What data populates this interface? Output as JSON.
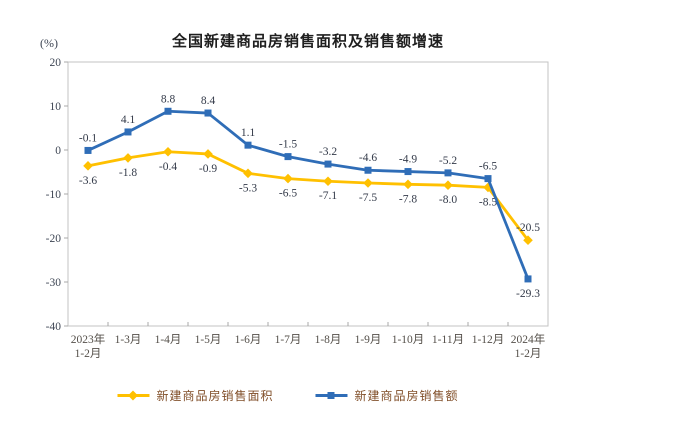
{
  "chart_data": {
    "type": "line",
    "title": "全国新建商品房销售面积及销售额增速",
    "unit_label": "(%)",
    "categories": [
      [
        "2023年",
        "1-2月"
      ],
      [
        "1-3月"
      ],
      [
        "1-4月"
      ],
      [
        "1-5月"
      ],
      [
        "1-6月"
      ],
      [
        "1-7月"
      ],
      [
        "1-8月"
      ],
      [
        "1-9月"
      ],
      [
        "1-10月"
      ],
      [
        "1-11月"
      ],
      [
        "1-12月"
      ],
      [
        "2024年",
        "1-2月"
      ]
    ],
    "y_ticks": [
      20,
      10,
      0,
      -10,
      -20,
      -30,
      -40
    ],
    "ylim": [
      -40,
      20
    ],
    "grid": false,
    "legend_position": "bottom",
    "series": [
      {
        "name": "新建商品房销售面积",
        "color": "#FFC000",
        "marker": "diamond",
        "values": [
          -3.6,
          -1.8,
          -0.4,
          -0.9,
          -5.3,
          -6.5,
          -7.1,
          -7.5,
          -7.8,
          -8.0,
          -8.5,
          -20.5
        ],
        "label_positions": [
          "below",
          "below",
          "below",
          "below",
          "below",
          "below",
          "below",
          "below",
          "below",
          "below",
          "below",
          "above"
        ]
      },
      {
        "name": "新建商品房销售额",
        "color": "#2F6DB7",
        "marker": "square",
        "values": [
          -0.1,
          4.1,
          8.8,
          8.4,
          1.1,
          -1.5,
          -3.2,
          -4.6,
          -4.9,
          -5.2,
          -6.5,
          -29.3
        ],
        "label_positions": [
          "above",
          "above",
          "above",
          "above",
          "above",
          "above",
          "above",
          "above",
          "above",
          "above",
          "above",
          "below"
        ]
      }
    ]
  }
}
